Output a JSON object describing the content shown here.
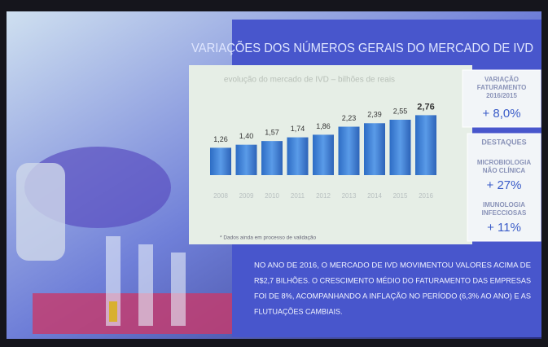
{
  "heading": "VARIAÇÕES DOS NÚMEROS GERAIS DO MERCADO DE IVD",
  "chart_data": {
    "type": "bar",
    "title": "evolução do mercado de IVD – bilhões de reais",
    "categories": [
      "2008",
      "2009",
      "2010",
      "2011",
      "2012",
      "2013",
      "2014",
      "2015",
      "2016"
    ],
    "values": [
      1.26,
      1.4,
      1.57,
      1.74,
      1.86,
      2.23,
      2.39,
      2.55,
      2.76
    ],
    "value_labels": [
      "1,26",
      "1,40",
      "1,57",
      "1,74",
      "1,86",
      "2,23",
      "2,39",
      "2,55",
      "2,76"
    ],
    "color": "#3c7fd6",
    "ylim": [
      0,
      3
    ],
    "footnote": "* Dados ainda em processo de validação"
  },
  "variation_box": {
    "label_lines": [
      "VARIAÇÃO",
      "FATURAMENTO",
      "2016/2015"
    ],
    "value": "+ 8,0%"
  },
  "highlights_box": {
    "title": "DESTAQUES",
    "items": [
      {
        "label_lines": [
          "MICROBIOLOGIA",
          "NÃO CLÍNICA"
        ],
        "value": "+ 27%"
      },
      {
        "label_lines": [
          "IMUNOLOGIA",
          "INFECCIOSAS"
        ],
        "value": "+ 11%"
      }
    ]
  },
  "paragraph_lines": [
    "NO ANO DE 2016, O MERCADO DE IVD MOVIMENTOU VALORES ACIMA DE",
    "R$2,7 BILHÕES. O CRESCIMENTO MÉDIO DO FATURAMENTO DAS EMPRESAS",
    "FOI DE 8%, ACOMPANHANDO A INFLAÇÃO NO PERÍODO (6,3% AO ANO) E AS",
    "FLUTUAÇÕES CAMBIAIS."
  ]
}
